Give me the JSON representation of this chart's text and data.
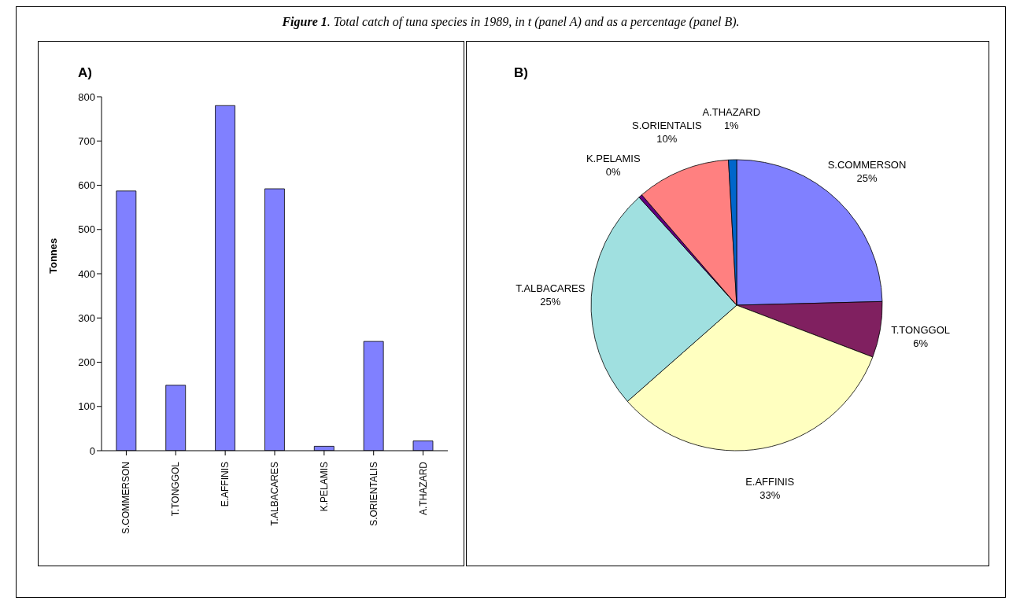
{
  "chart_data": [
    {
      "type": "bar",
      "title": "A)",
      "annotations": [
        "Figure 1. Total catch of tuna species in 1989, in t (panel A) and as a percentage (panel B)."
      ],
      "ylabel": "Tonnes",
      "categories": [
        "S.COMMERSON",
        "T.TONGGOL",
        "E.AFFINIS",
        "T.ALBACARES",
        "K.PELAMIS",
        "S.ORIENTALIS",
        "A.THAZARD"
      ],
      "values": [
        587,
        148,
        780,
        592,
        10,
        247,
        22
      ],
      "color": "#8080ff",
      "ylim": [
        0,
        800
      ],
      "yticks": [
        0,
        100,
        200,
        300,
        400,
        500,
        600,
        700,
        800
      ]
    },
    {
      "type": "pie",
      "title": "B)",
      "categories": [
        "S.COMMERSON",
        "T.TONGGOL",
        "E.AFFINIS",
        "T.ALBACARES",
        "K.PELAMIS",
        "S.ORIENTALIS",
        "A.THAZARD"
      ],
      "values": [
        24.6,
        6.2,
        32.7,
        24.8,
        0.4,
        10.4,
        0.9
      ],
      "value_labels": [
        "25%",
        "6%",
        "33%",
        "25%",
        "0%",
        "10%",
        "1%"
      ],
      "colors": [
        "#8080ff",
        "#802060",
        "#ffffc0",
        "#a0e0e0",
        "#600080",
        "#ff8080",
        "#0066cc"
      ]
    }
  ]
}
